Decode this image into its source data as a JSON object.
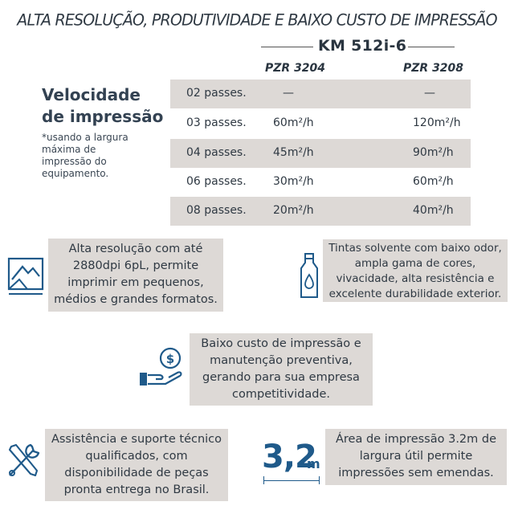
{
  "headline": "ALTA RESOLUÇÃO, PRODUTIVIDADE E BAIXO CUSTO DE IMPRESSÃO",
  "table": {
    "model": "KM 512i-6",
    "columns": [
      "PZR 3204",
      "PZR 3208"
    ],
    "rows": [
      {
        "passes": "02 passes.",
        "v1": "—",
        "v2": "—"
      },
      {
        "passes": "03 passes.",
        "v1": "60m²/h",
        "v2": "120m²/h"
      },
      {
        "passes": "04 passes.",
        "v1": "45m²/h",
        "v2": "90m²/h"
      },
      {
        "passes": "06 passes.",
        "v1": "30m²/h",
        "v2": "60m²/h"
      },
      {
        "passes": "08 passes.",
        "v1": "20m²/h",
        "v2": "40m²/h"
      }
    ]
  },
  "speed": {
    "title_line1": "Velocidade",
    "title_line2": "de impressão",
    "note": [
      "*usando a largura",
      "máxima de",
      "impressão do",
      "equipamento."
    ]
  },
  "features": {
    "resolution": [
      "Alta resolução com até",
      "2880dpi 6pL, permite",
      "imprimir em pequenos,",
      "médios e grandes formatos."
    ],
    "inks": [
      "Tintas solvente com baixo odor,",
      "ampla gama de cores,",
      "vivacidade, alta resistência e",
      "excelente durabilidade exterior."
    ],
    "cost": [
      "Baixo custo de impressão e",
      "manutenção preventiva,",
      "gerando para sua empresa",
      "competitividade."
    ],
    "support": [
      "Assistência e suporte técnico",
      "qualificados, com",
      "disponibilidade de peças",
      "pronta entrega no Brasil."
    ],
    "area": [
      "Área de impressão 3.2m de",
      "largura útil permite",
      "impressões sem emendas."
    ]
  },
  "area_badge": {
    "big": "3,2",
    "unit": "m"
  },
  "colors": {
    "accent": "#1f5a8a",
    "box": "#ddd9d6",
    "text": "#2f3943"
  },
  "icons": [
    "image-icon",
    "bottle-icon",
    "money-hand-icon",
    "tools-icon"
  ]
}
